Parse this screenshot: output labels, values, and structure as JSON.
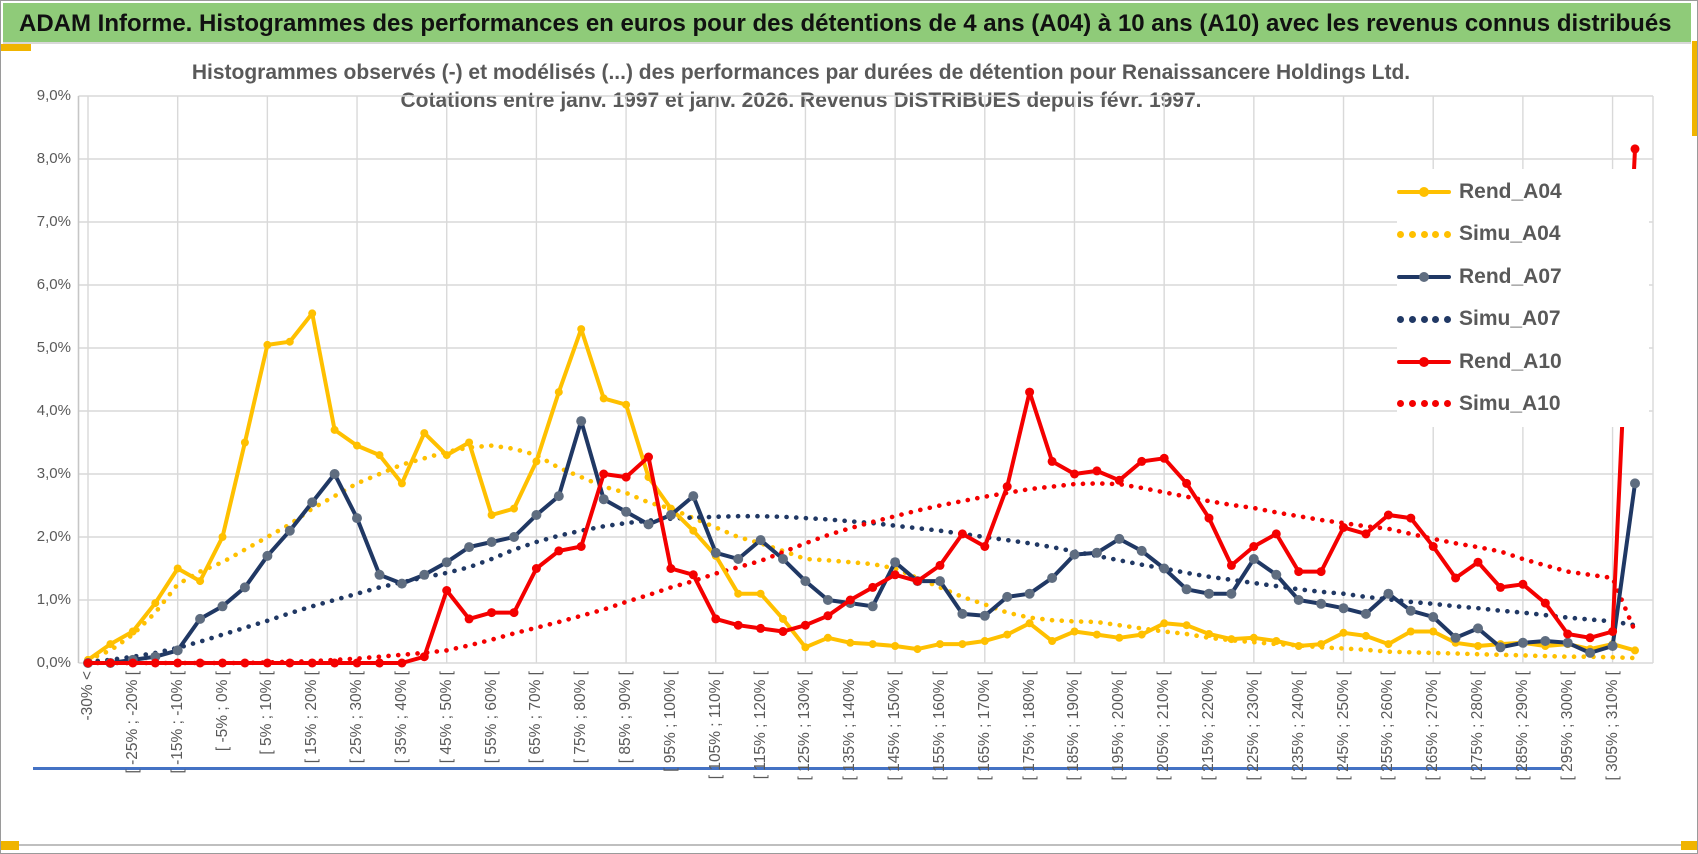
{
  "header": {
    "title": "ADAM Informe. Histogrammes des performances en euros pour des détentions de 4 ans (A04) à 10 ans (A10) avec les revenus connus distribués"
  },
  "colors": {
    "header_green": "#8fcb79",
    "accent_yellow": "#f0b400",
    "series_yellow": "#FFC000",
    "series_navy": "#203864",
    "navy_marker_gray": "#5f6d80",
    "series_red": "#f40000",
    "text_gray": "#595959",
    "grid_gray": "#d9d9d9",
    "blue_rule": "#4472c4"
  },
  "chart_data": {
    "type": "line",
    "title": "Histogrammes observés (-) et modélisés (...) des performances par durées de détention pour Renaissancere Holdings Ltd.",
    "subtitle": "Cotations entre janv. 1997 et janv. 2026. Revenus DISTRIBUES depuis févr. 1997.",
    "ylabel": "",
    "xlabel": "",
    "ylim": [
      0,
      9
    ],
    "grid": true,
    "legend_position": "right-inside",
    "y_tick_labels": [
      "0,0%",
      "1,0%",
      "2,0%",
      "3,0%",
      "4,0%",
      "5,0%",
      "6,0%",
      "7,0%",
      "8,0%",
      "9,0%"
    ],
    "x_tick_labels": [
      "-30% <",
      "[ -25% ; -20% [",
      "[ -15% ; -10% [",
      "[ -5% ; 0% [",
      "[ 5% ; 10% [",
      "[ 15% ; 20% [",
      "[ 25% ; 30% [",
      "[ 35% ; 40% [",
      "[ 45% ; 50% [",
      "[ 55% ; 60% [",
      "[ 65% ; 70% [",
      "[ 75% ; 80% [",
      "[ 85% ; 90% [",
      "[ 95% ; 100% [",
      "[ 105% ; 110% [",
      "[ 115% ; 120% [",
      "[ 125% ; 130% [",
      "[ 135% ; 140% [",
      "[ 145% ; 150% [",
      "[ 155% ; 160% [",
      "[ 165% ; 170% [",
      "[ 175% ; 180% [",
      "[ 185% ; 190% [",
      "[ 195% ; 200% [",
      "[ 205% ; 210% [",
      "[ 215% ; 220% [",
      "[ 225% ; 230% [",
      "[ 235% ; 240% [",
      "[ 245% ; 250% [",
      "[ 255% ; 260% [",
      "[ 265% ; 270% [",
      "[ 275% ; 280% [",
      "[ 285% ; 290% [",
      "[ 295% ; 300% [",
      "[ 305% ; 310% ["
    ],
    "x_bins_total": 70,
    "labeled_bin_step": 2,
    "series": [
      {
        "name": "Simu_A04",
        "style": "dotted",
        "color": "#FFC000",
        "marker": null,
        "values": [
          0.05,
          0.2,
          0.45,
          0.8,
          1.25,
          1.45,
          1.6,
          1.8,
          2.0,
          2.2,
          2.45,
          2.65,
          2.85,
          3.0,
          3.15,
          3.25,
          3.35,
          3.42,
          3.45,
          3.4,
          3.3,
          3.1,
          2.95,
          2.8,
          2.7,
          2.55,
          2.45,
          2.3,
          2.15,
          2.0,
          1.9,
          1.78,
          1.65,
          1.63,
          1.6,
          1.57,
          1.5,
          1.35,
          1.2,
          1.05,
          0.93,
          0.8,
          0.72,
          0.68,
          0.66,
          0.65,
          0.6,
          0.55,
          0.5,
          0.46,
          0.4,
          0.36,
          0.33,
          0.3,
          0.28,
          0.25,
          0.23,
          0.21,
          0.18,
          0.17,
          0.16,
          0.15,
          0.14,
          0.13,
          0.12,
          0.11,
          0.1,
          0.1,
          0.09,
          0.08
        ]
      },
      {
        "name": "Simu_A07",
        "style": "dotted",
        "color": "#203864",
        "marker": null,
        "values": [
          0.02,
          0.05,
          0.1,
          0.16,
          0.24,
          0.34,
          0.45,
          0.56,
          0.67,
          0.79,
          0.9,
          1.0,
          1.1,
          1.2,
          1.28,
          1.36,
          1.43,
          1.52,
          1.65,
          1.8,
          1.92,
          2.02,
          2.1,
          2.17,
          2.22,
          2.26,
          2.29,
          2.31,
          2.32,
          2.33,
          2.33,
          2.32,
          2.3,
          2.28,
          2.25,
          2.22,
          2.18,
          2.14,
          2.1,
          2.05,
          2.0,
          1.95,
          1.9,
          1.84,
          1.77,
          1.7,
          1.63,
          1.56,
          1.5,
          1.43,
          1.37,
          1.32,
          1.27,
          1.22,
          1.17,
          1.13,
          1.1,
          1.05,
          1.01,
          0.97,
          0.94,
          0.9,
          0.87,
          0.83,
          0.8,
          0.76,
          0.72,
          0.69,
          0.66,
          0.6
        ]
      },
      {
        "name": "Simu_A10",
        "style": "dotted",
        "color": "#f40000",
        "marker": null,
        "values": [
          0,
          0,
          0,
          0,
          0,
          0,
          0,
          0,
          0.01,
          0.02,
          0.03,
          0.05,
          0.07,
          0.1,
          0.13,
          0.16,
          0.2,
          0.28,
          0.37,
          0.47,
          0.56,
          0.65,
          0.75,
          0.85,
          0.97,
          1.08,
          1.2,
          1.3,
          1.42,
          1.52,
          1.62,
          1.76,
          1.9,
          2.03,
          2.14,
          2.24,
          2.33,
          2.42,
          2.5,
          2.57,
          2.64,
          2.7,
          2.76,
          2.8,
          2.84,
          2.85,
          2.84,
          2.78,
          2.71,
          2.64,
          2.57,
          2.51,
          2.46,
          2.39,
          2.33,
          2.27,
          2.22,
          2.17,
          2.13,
          2.05,
          1.97,
          1.9,
          1.84,
          1.77,
          1.65,
          1.55,
          1.45,
          1.4,
          1.35,
          0.5
        ]
      },
      {
        "name": "Rend_A04",
        "style": "solid",
        "color": "#FFC000",
        "marker": {
          "color": "#FFC000",
          "r": 4
        },
        "values": [
          0.05,
          0.3,
          0.5,
          0.95,
          1.5,
          1.3,
          2.0,
          3.5,
          5.05,
          5.1,
          5.55,
          3.7,
          3.45,
          3.3,
          2.85,
          3.65,
          3.3,
          3.5,
          2.35,
          2.45,
          3.2,
          4.3,
          5.3,
          4.2,
          4.1,
          2.95,
          2.45,
          2.1,
          1.7,
          1.1,
          1.1,
          0.7,
          0.25,
          0.4,
          0.32,
          0.3,
          0.27,
          0.22,
          0.3,
          0.3,
          0.35,
          0.45,
          0.63,
          0.35,
          0.5,
          0.45,
          0.4,
          0.45,
          0.63,
          0.6,
          0.46,
          0.38,
          0.4,
          0.35,
          0.27,
          0.3,
          0.48,
          0.43,
          0.3,
          0.5,
          0.5,
          0.32,
          0.27,
          0.3,
          0.32,
          0.27,
          0.3,
          0.22,
          0.3,
          0.2
        ]
      },
      {
        "name": "Rend_A07",
        "style": "solid",
        "color": "#203864",
        "marker": {
          "color": "#5f6d80",
          "r": 5
        },
        "values": [
          0,
          0,
          0.05,
          0.1,
          0.2,
          0.7,
          0.9,
          1.2,
          1.7,
          2.1,
          2.55,
          3.0,
          2.3,
          1.4,
          1.26,
          1.4,
          1.6,
          1.84,
          1.92,
          2.0,
          2.35,
          2.65,
          3.84,
          2.6,
          2.4,
          2.2,
          2.35,
          2.65,
          1.75,
          1.65,
          1.95,
          1.65,
          1.3,
          1.0,
          0.95,
          0.9,
          1.6,
          1.3,
          1.3,
          0.78,
          0.75,
          1.05,
          1.1,
          1.35,
          1.72,
          1.75,
          1.97,
          1.78,
          1.5,
          1.17,
          1.1,
          1.1,
          1.65,
          1.4,
          1.0,
          0.94,
          0.87,
          0.78,
          1.1,
          0.83,
          0.73,
          0.4,
          0.55,
          0.25,
          0.32,
          0.35,
          0.32,
          0.16,
          0.27,
          2.85
        ]
      },
      {
        "name": "Rend_A10",
        "style": "solid",
        "color": "#f40000",
        "marker": {
          "color": "#f40000",
          "r": 4.5
        },
        "values": [
          0,
          0,
          0,
          0,
          0,
          0,
          0,
          0,
          0,
          0,
          0,
          0,
          0,
          0,
          0,
          0.1,
          1.15,
          0.7,
          0.8,
          0.8,
          1.5,
          1.78,
          1.85,
          3.0,
          2.95,
          3.27,
          1.5,
          1.4,
          0.7,
          0.6,
          0.55,
          0.5,
          0.6,
          0.75,
          1.0,
          1.2,
          1.4,
          1.3,
          1.55,
          2.05,
          1.85,
          2.8,
          4.3,
          3.2,
          3.0,
          3.05,
          2.9,
          3.2,
          3.25,
          2.85,
          2.3,
          1.55,
          1.85,
          2.05,
          1.45,
          1.45,
          2.15,
          2.05,
          2.35,
          2.3,
          1.85,
          1.35,
          1.6,
          1.2,
          1.25,
          0.95,
          0.46,
          0.4,
          0.5,
          8.16
        ]
      }
    ]
  },
  "legend": {
    "entries": [
      {
        "label": "Rend_A04",
        "style": "solid",
        "color": "#FFC000",
        "marker": "#FFC000"
      },
      {
        "label": "Simu_A04",
        "style": "dotted",
        "color": "#FFC000"
      },
      {
        "label": "Rend_A07",
        "style": "solid",
        "color": "#203864",
        "marker": "#5f6d80"
      },
      {
        "label": "Simu_A07",
        "style": "dotted",
        "color": "#203864"
      },
      {
        "label": "Rend_A10",
        "style": "solid",
        "color": "#f40000",
        "marker": "#f40000"
      },
      {
        "label": "Simu_A10",
        "style": "dotted",
        "color": "#f40000"
      }
    ]
  }
}
